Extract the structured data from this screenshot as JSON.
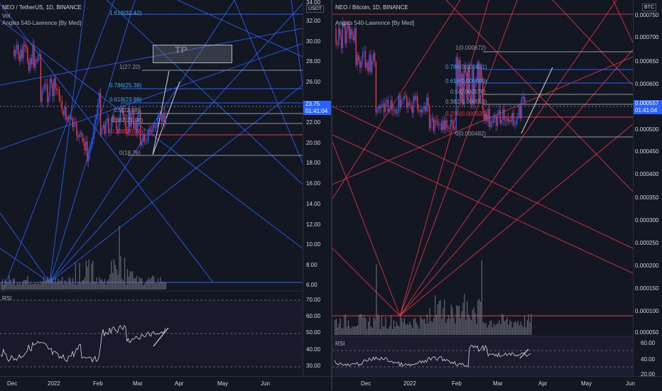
{
  "left_chart": {
    "title": "NEO / TetherUS, 1D, BINANCE",
    "vol_label": "Vol",
    "indicator": "Angles 540-Lawrence [By Med]",
    "currency": "USDT",
    "price_tag": "23.75",
    "countdown": "01:41:04",
    "tp_label": "TP",
    "rsi_label": "RSI",
    "price_axis": [
      "34.00",
      "32.00",
      "30.00",
      "28.00",
      "26.00",
      "24.00",
      "22.00",
      "20.00",
      "18.00",
      "16.00",
      "14.00",
      "12.00",
      "10.00",
      "8.00",
      "6.00"
    ],
    "rsi_axis": [
      "70.00",
      "60.00",
      "50.00",
      "40.00",
      "30.00"
    ],
    "time_axis": [
      "Dec",
      "2022",
      "Feb",
      "Mar",
      "Apr",
      "May",
      "Jun"
    ],
    "fib_labels": [
      "1.618(32.42)",
      "1(27.20)",
      "0.786(25.39)",
      "0.618(23.98)",
      "0.5(22.98)",
      "0.382(21.98)",
      "0.236(20.76)",
      "0(18.76)"
    ]
  },
  "right_chart": {
    "title": "NEO / Bitcoin, 1D, BINANCE",
    "indicator": "Angles 540-Lawrence [By Med]",
    "currency": "BTC",
    "price_tag": "0.000557",
    "countdown": "01:41:04",
    "rsi_label": "RSI",
    "price_axis": [
      "0.000750",
      "0.000700",
      "0.000650",
      "0.000600",
      "0.000550",
      "0.000500",
      "0.000450",
      "0.000400",
      "0.000350",
      "0.000300",
      "0.000250",
      "0.000200",
      "0.000150",
      "0.000100",
      "0.000050"
    ],
    "rsi_axis": [
      "60.00",
      "40.00",
      "20.00"
    ],
    "time_axis": [
      "Dec",
      "2022",
      "Feb",
      "Mar",
      "Apr",
      "May",
      "Jun"
    ],
    "fib_labels": [
      "1(0.000672)",
      "0.786(0.000631)",
      "0.618(0.000599)",
      "0.5(0.000576)",
      "0.382(0.000553)",
      "0.236(0.000525)",
      "0(0.000482)"
    ]
  },
  "colors": {
    "background": "#131722",
    "blue_lines": "#2962ff",
    "red_lines": "#f23645",
    "candle_up": "#2962ff",
    "candle_down": "#f23645",
    "volume": "#787b86",
    "price_tag": "#2962ff"
  }
}
